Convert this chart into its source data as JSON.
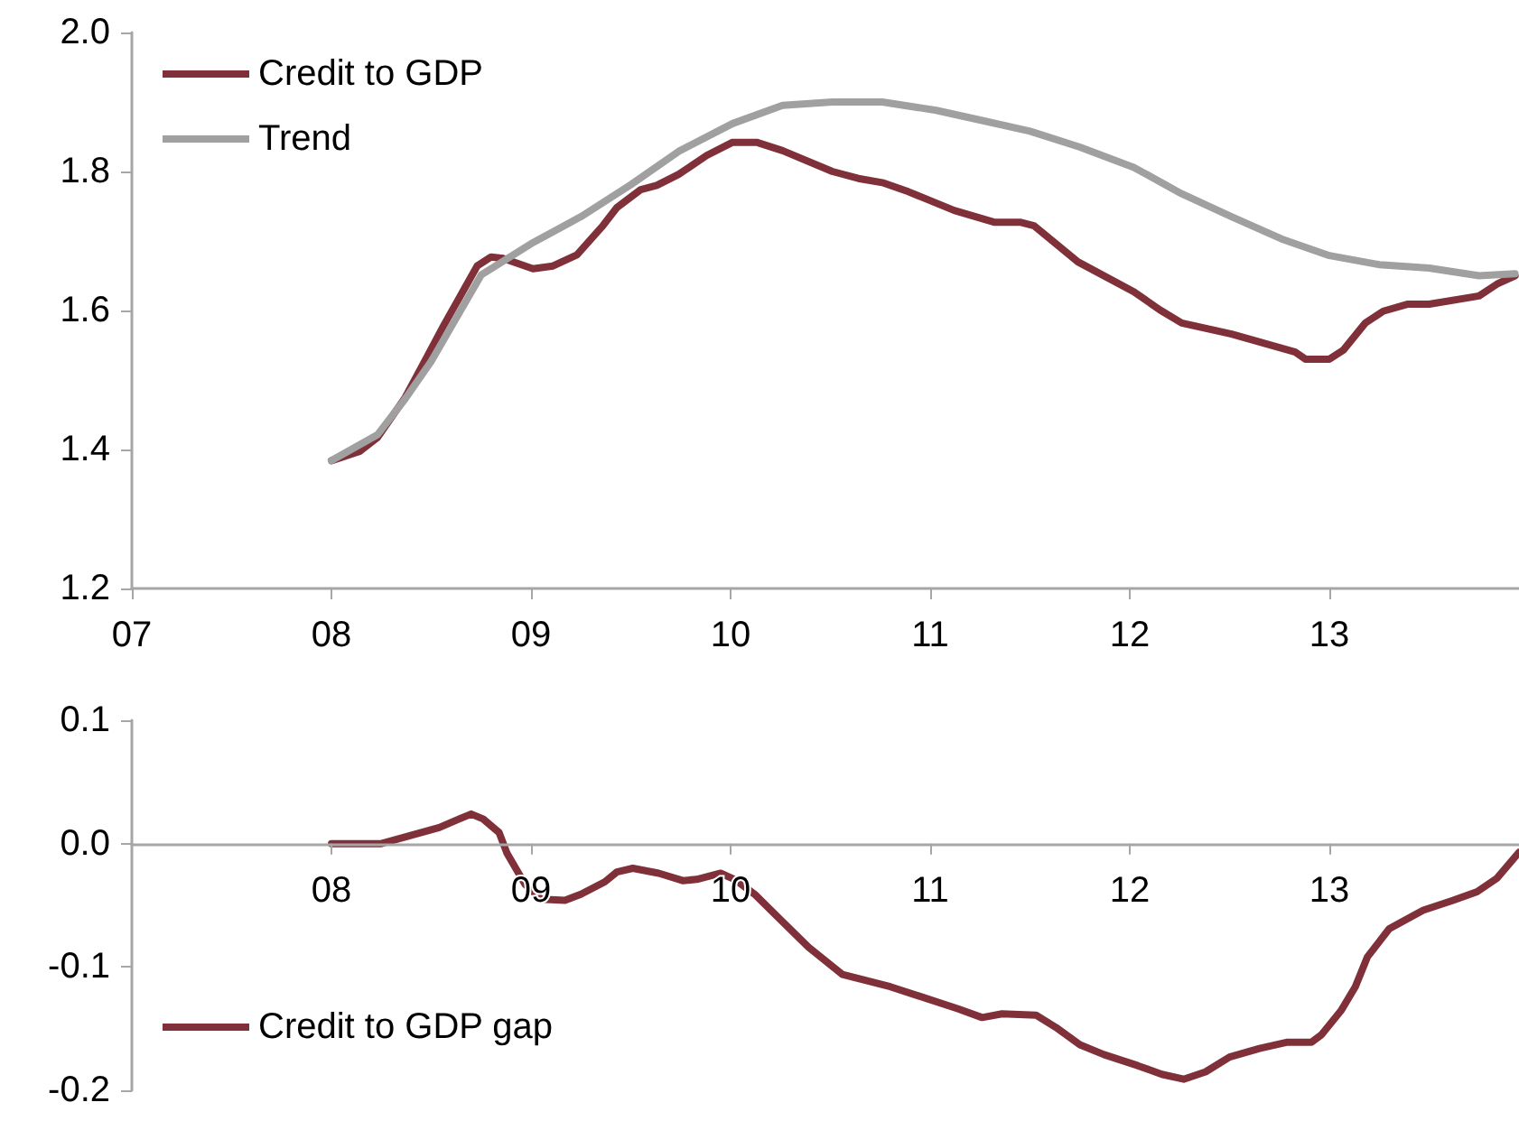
{
  "chart_data": [
    {
      "type": "line",
      "legend": "top left",
      "grid": false,
      "marker": "none",
      "line_style": "solid",
      "xlim": [
        2007,
        2013.95
      ],
      "xticks": [
        {
          "value": 2007,
          "label": "07"
        },
        {
          "value": 2008,
          "label": "08"
        },
        {
          "value": 2009,
          "label": "09"
        },
        {
          "value": 2010,
          "label": "10"
        },
        {
          "value": 2011,
          "label": "11"
        },
        {
          "value": 2012,
          "label": "12"
        },
        {
          "value": 2013,
          "label": "13"
        }
      ],
      "ylim": [
        1.2,
        2.0
      ],
      "yticks": [
        {
          "value": 1.2,
          "label": "1.2"
        },
        {
          "value": 1.4,
          "label": "1.4"
        },
        {
          "value": 1.6,
          "label": "1.6"
        },
        {
          "value": 1.8,
          "label": "1.8"
        },
        {
          "value": 2.0,
          "label": "2.0"
        }
      ],
      "series": [
        {
          "name": "Credit to GDP",
          "color": "#7f3039",
          "x": [
            2008.0,
            2008.14,
            2008.23,
            2008.37,
            2008.48,
            2008.56,
            2008.73,
            2008.8,
            2008.86,
            2009.01,
            2009.11,
            2009.23,
            2009.36,
            2009.43,
            2009.55,
            2009.63,
            2009.74,
            2009.88,
            2010.01,
            2010.13,
            2010.26,
            2010.51,
            2010.64,
            2010.76,
            2010.89,
            2011.12,
            2011.32,
            2011.45,
            2011.52,
            2011.74,
            2012.02,
            2012.15,
            2012.26,
            2012.51,
            2012.83,
            2012.88,
            2013.0,
            2013.07,
            2013.18,
            2013.27,
            2013.39,
            2013.5,
            2013.75,
            2013.84,
            2013.93
          ],
          "values": [
            1.384,
            1.397,
            1.417,
            1.475,
            1.534,
            1.577,
            1.664,
            1.677,
            1.675,
            1.66,
            1.664,
            1.68,
            1.722,
            1.748,
            1.774,
            1.78,
            1.796,
            1.823,
            1.842,
            1.842,
            1.83,
            1.8,
            1.79,
            1.784,
            1.771,
            1.744,
            1.727,
            1.727,
            1.722,
            1.67,
            1.627,
            1.601,
            1.582,
            1.566,
            1.54,
            1.53,
            1.53,
            1.543,
            1.582,
            1.599,
            1.609,
            1.609,
            1.621,
            1.638,
            1.65
          ]
        },
        {
          "name": "Trend",
          "color": "#a0a0a0",
          "x": [
            2008.0,
            2008.23,
            2008.37,
            2008.5,
            2008.75,
            2009.0,
            2009.25,
            2009.5,
            2009.74,
            2010.01,
            2010.26,
            2010.51,
            2010.76,
            2011.03,
            2011.25,
            2011.5,
            2011.75,
            2012.02,
            2012.26,
            2012.51,
            2012.76,
            2013.0,
            2013.25,
            2013.5,
            2013.75,
            2013.93
          ],
          "values": [
            1.384,
            1.421,
            1.473,
            1.527,
            1.651,
            1.696,
            1.735,
            1.781,
            1.829,
            1.869,
            1.895,
            1.9,
            1.9,
            1.888,
            1.874,
            1.858,
            1.835,
            1.806,
            1.768,
            1.735,
            1.703,
            1.679,
            1.666,
            1.661,
            1.65,
            1.653
          ]
        }
      ]
    },
    {
      "type": "line",
      "legend": "bottom left",
      "grid": false,
      "marker": "none",
      "line_style": "solid",
      "xlim": [
        2007,
        2013.95
      ],
      "xticks": [
        {
          "value": 2008,
          "label": "08"
        },
        {
          "value": 2009,
          "label": "09"
        },
        {
          "value": 2010,
          "label": "10"
        },
        {
          "value": 2011,
          "label": "11"
        },
        {
          "value": 2012,
          "label": "12"
        },
        {
          "value": 2013,
          "label": "13"
        }
      ],
      "ylim": [
        -0.2,
        0.1
      ],
      "yticks": [
        {
          "value": -0.2,
          "label": "-0.2"
        },
        {
          "value": -0.1,
          "label": "-0.1"
        },
        {
          "value": 0,
          "label": "0.0"
        },
        {
          "value": 0.1,
          "label": "0.1"
        }
      ],
      "series": [
        {
          "name": "Credit to GDP gap",
          "color": "#7f3039",
          "x": [
            2008.0,
            2008.25,
            2008.54,
            2008.64,
            2008.7,
            2008.76,
            2008.84,
            2008.88,
            2008.97,
            2009.05,
            2009.17,
            2009.25,
            2009.37,
            2009.43,
            2009.51,
            2009.64,
            2009.76,
            2009.83,
            2009.95,
            2010.02,
            2010.12,
            2010.39,
            2010.56,
            2010.8,
            2011.14,
            2011.26,
            2011.36,
            2011.53,
            2011.63,
            2011.75,
            2011.87,
            2012.04,
            2012.16,
            2012.27,
            2012.38,
            2012.5,
            2012.65,
            2012.79,
            2012.91,
            2012.96,
            2013.06,
            2013.13,
            2013.19,
            2013.3,
            2013.47,
            2013.62,
            2013.74,
            2013.84,
            2013.95
          ],
          "values": [
            0,
            0,
            0.013,
            0.02,
            0.024,
            0.02,
            0.009,
            -0.008,
            -0.033,
            -0.045,
            -0.046,
            -0.041,
            -0.031,
            -0.023,
            -0.02,
            -0.024,
            -0.03,
            -0.029,
            -0.024,
            -0.029,
            -0.041,
            -0.084,
            -0.106,
            -0.116,
            -0.134,
            -0.141,
            -0.138,
            -0.139,
            -0.149,
            -0.163,
            -0.171,
            -0.18,
            -0.187,
            -0.191,
            -0.185,
            -0.173,
            -0.166,
            -0.161,
            -0.161,
            -0.155,
            -0.135,
            -0.116,
            -0.092,
            -0.069,
            -0.054,
            -0.046,
            -0.039,
            -0.028,
            -0.007
          ]
        }
      ]
    }
  ]
}
